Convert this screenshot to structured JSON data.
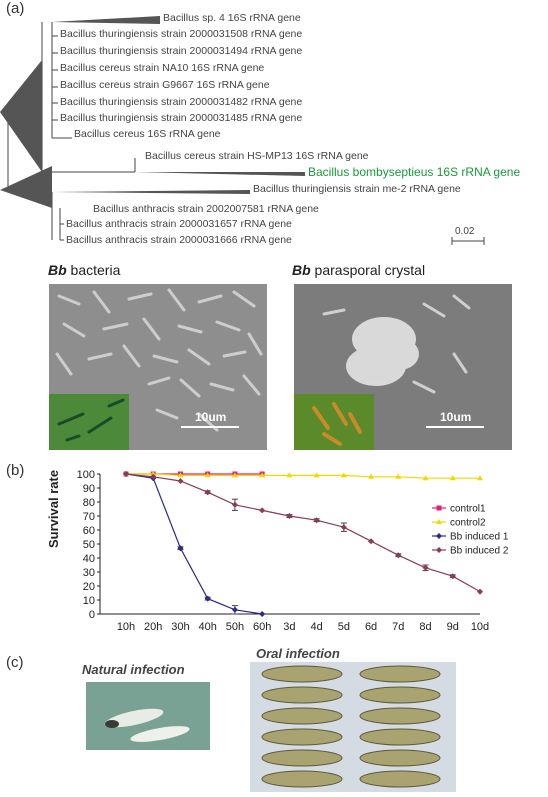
{
  "panels": {
    "a": "(a)",
    "b": "(b)",
    "c": "(c)"
  },
  "tree": {
    "leaves": [
      "Bacillus sp. 4 16S rRNA gene",
      "Bacillus thuringiensis strain 2000031508  rRNA gene",
      "Bacillus thuringiensis strain 2000031494  rRNA gene",
      "Bacillus cereus strain NA10 16S rRNA  gene",
      "Bacillus cereus strain G9667 16S rRNA gene",
      "Bacillus thuringiensis strain 2000031482  rRNA gene",
      "Bacillus thuringiensis strain 2000031485  rRNA gene",
      "Bacillus cereus 16S rRNA  gene",
      "Bacillus cereus strain HS-MP13 16S rRNA  gene",
      "Bacillus bombyseptieus 16S rRNA  gene",
      "Bacillus thuringiensis strain me-2  rRNA gene",
      "Bacillus anthracis strain 2002007581 rRNA gene",
      "Bacillus anthracis strain 2000031657 rRNA gene",
      "Bacillus anthracis strain 2000031666 rRNA gene"
    ],
    "scale_label": "0.02"
  },
  "sem": {
    "left_title_em": "Bb",
    "left_title": " bacteria",
    "right_title_em": "Bb",
    "right_title": " parasporal crystal",
    "scale_text": "10um"
  },
  "chart_data": {
    "type": "line",
    "ylabel": "Survival rate",
    "ylim": [
      0,
      100
    ],
    "yticks": [
      0,
      10,
      20,
      30,
      40,
      50,
      60,
      70,
      80,
      90,
      100
    ],
    "categories": [
      "10h",
      "20h",
      "30h",
      "40h",
      "50h",
      "60h",
      "3d",
      "4d",
      "5d",
      "6d",
      "7d",
      "8d",
      "9d",
      "10d"
    ],
    "series": [
      {
        "name": "control1",
        "color": "#e0207a",
        "marker": "square",
        "values": [
          100,
          100,
          100,
          100,
          100,
          100,
          null,
          null,
          null,
          null,
          null,
          null,
          null,
          null
        ]
      },
      {
        "name": "control2",
        "color": "#f0d800",
        "marker": "triangle",
        "values": [
          100,
          100,
          99,
          99,
          99,
          99,
          99,
          99,
          99,
          98,
          98,
          97,
          97,
          97
        ]
      },
      {
        "name": "Bb induced 1",
        "color": "#2a2a8a",
        "marker": "diamond",
        "values": [
          100,
          97,
          47,
          11,
          3,
          0,
          null,
          null,
          null,
          null,
          null,
          null,
          null,
          null
        ]
      },
      {
        "name": "Bb induced 2",
        "color": "#8a3a5a",
        "marker": "diamond",
        "values": [
          100,
          98,
          95,
          87,
          78,
          74,
          70,
          67,
          62,
          52,
          42,
          33,
          27,
          16
        ]
      }
    ],
    "error_bars": [
      {
        "series": "Bb induced 1",
        "values": [
          0,
          0,
          1,
          1,
          3,
          0,
          null,
          null,
          null,
          null,
          null,
          null,
          null,
          null
        ]
      },
      {
        "series": "Bb induced 2",
        "values": [
          0,
          0,
          0,
          1,
          4,
          0,
          1,
          1,
          3,
          0,
          1,
          2,
          1,
          0
        ]
      }
    ],
    "grid": false,
    "legend_position": "right"
  },
  "infection": {
    "natural": "Natural infection",
    "oral": "Oral infection"
  }
}
